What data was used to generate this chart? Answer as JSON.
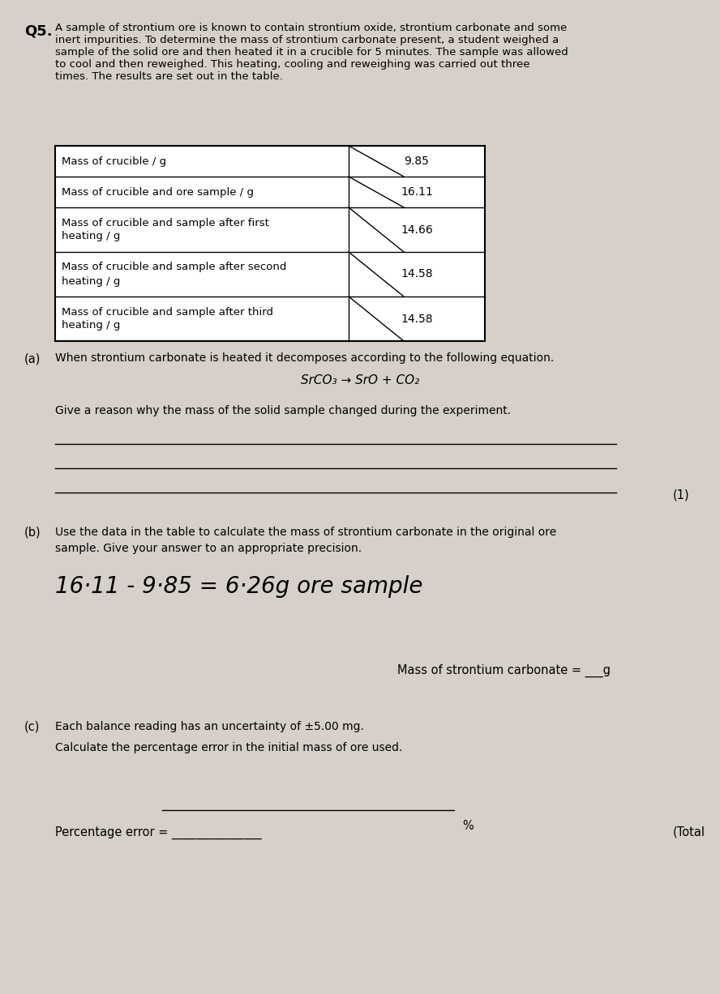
{
  "bg_color": "#d6d0c8",
  "page_bg": "#e8e2d8",
  "question_number": "Q5.",
  "intro_text": "A sample of strontium ore is known to contain strontium oxide, strontium carbonate and some\ninert impurities. To determine the mass of strontium carbonate present, a student weighed a\nsample of the solid ore and then heated it in a crucible for 5 minutes. The sample was allowed\nto cool and then reweighed. This heating, cooling and reweighing was carried out three\ntimes. The results are set out in the table.",
  "table_rows": [
    [
      "Mass of crucible / g",
      "9.85"
    ],
    [
      "Mass of crucible and ore sample / g",
      "16.11"
    ],
    [
      "Mass of crucible and sample after first\nheating / g",
      "14.66"
    ],
    [
      "Mass of crucible and sample after second\nheating / g",
      "14.58"
    ],
    [
      "Mass of crucible and sample after third\nheating / g",
      "14.58"
    ]
  ],
  "part_a_label": "(a)",
  "part_a_text": "When strontium carbonate is heated it decomposes according to the following equation.",
  "equation": "SrCO₃ → SrO + CO₂",
  "give_reason": "Give a reason why the mass of the solid sample changed during the experiment.",
  "mark_1": "(1)",
  "part_b_label": "(b)",
  "part_b_text": "Use the data in the table to calculate the mass of strontium carbonate in the original ore\nsample. Give your answer to an appropriate precision.",
  "handwritten_calc": "16·11 - 9·85 = 6·26g ore sample",
  "mass_carbonate_label": "Mass of strontium carbonate = ___g",
  "part_c_label": "(c)",
  "part_c_text1": "Each balance reading has an uncertainty of ±5.00 mg.",
  "part_c_text2": "Calculate the percentage error in the initial mass of ore used.",
  "percent_label": "%",
  "percentage_error_label": "Percentage error = _______________",
  "total_label": "(Total"
}
